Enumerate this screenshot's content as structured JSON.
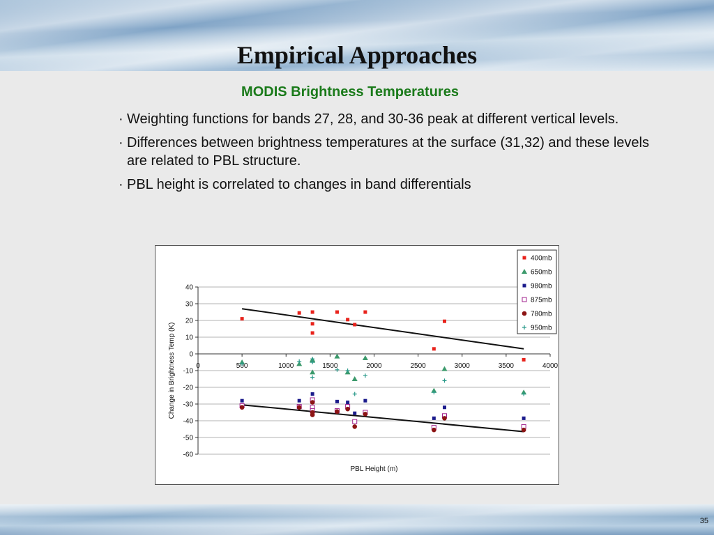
{
  "slide": {
    "title": "Empirical Approaches",
    "subtitle": "MODIS Brightness Temperatures",
    "bullets": [
      "Weighting functions for bands 27, 28, and 30-36 peak at different vertical levels.",
      "Differences between brightness temperatures at the surface (31,32) and these levels are related to PBL structure.",
      "PBL height is correlated to changes in band differentials"
    ],
    "bullet_marker": "·",
    "page_number": "35"
  },
  "colors": {
    "subtitle": "#1a7a1a",
    "series_400": "#e8231c",
    "series_650": "#3c9a6c",
    "series_980": "#1c1c8c",
    "series_875": "#a0208c",
    "series_780": "#8c1414",
    "series_950": "#2a9a8a"
  },
  "chart_data": {
    "type": "scatter",
    "xlabel": "PBL Height (m)",
    "ylabel": "Change in Brightness Temp (K)",
    "xlim": [
      0,
      4000
    ],
    "ylim": [
      -60,
      40
    ],
    "x_ticks": [
      "0",
      "500",
      "1000",
      "1500",
      "2000",
      "2500",
      "3000",
      "3500",
      "4000"
    ],
    "y_ticks": [
      "40",
      "30",
      "20",
      "10",
      "0",
      "-10",
      "-20",
      "-30",
      "-40",
      "-50",
      "-60"
    ],
    "grid": "horizontal",
    "legend_position": "top-right",
    "series": [
      {
        "name": "400mb",
        "marker": "square-filled",
        "points": [
          [
            500,
            21
          ],
          [
            1150,
            24.5
          ],
          [
            1300,
            25
          ],
          [
            1300,
            18
          ],
          [
            1300,
            12.5
          ],
          [
            1580,
            25
          ],
          [
            1700,
            20.5
          ],
          [
            1780,
            17.5
          ],
          [
            1900,
            25
          ],
          [
            2680,
            3
          ],
          [
            2800,
            19.5
          ],
          [
            3700,
            -3.5
          ]
        ]
      },
      {
        "name": "650mb",
        "marker": "triangle-filled",
        "points": [
          [
            500,
            -5
          ],
          [
            1150,
            -6
          ],
          [
            1300,
            -4
          ],
          [
            1300,
            -11
          ],
          [
            1300,
            -3.5
          ],
          [
            1580,
            -1.5
          ],
          [
            1700,
            -11
          ],
          [
            1780,
            -15
          ],
          [
            1900,
            -2.5
          ],
          [
            2680,
            -22
          ],
          [
            2800,
            -9
          ],
          [
            3700,
            -23
          ]
        ]
      },
      {
        "name": "980mb",
        "marker": "square-filled",
        "points": [
          [
            500,
            -28
          ],
          [
            1150,
            -28
          ],
          [
            1300,
            -24
          ],
          [
            1300,
            -28
          ],
          [
            1300,
            -29
          ],
          [
            1580,
            -28.5
          ],
          [
            1700,
            -29
          ],
          [
            1780,
            -35.5
          ],
          [
            1900,
            -28
          ],
          [
            2680,
            -38.5
          ],
          [
            2800,
            -32
          ],
          [
            3700,
            -38.5
          ]
        ]
      },
      {
        "name": "875mb",
        "marker": "square-open",
        "points": [
          [
            500,
            -31
          ],
          [
            1150,
            -31.5
          ],
          [
            1300,
            -27.5
          ],
          [
            1300,
            -32
          ],
          [
            1300,
            -34
          ],
          [
            1580,
            -34
          ],
          [
            1700,
            -31.5
          ],
          [
            1780,
            -40.5
          ],
          [
            1900,
            -35
          ],
          [
            2680,
            -44
          ],
          [
            2800,
            -37
          ],
          [
            3700,
            -43.5
          ]
        ]
      },
      {
        "name": "780mb",
        "marker": "circle-filled",
        "points": [
          [
            500,
            -32
          ],
          [
            1150,
            -32
          ],
          [
            1300,
            -29
          ],
          [
            1300,
            -35
          ],
          [
            1300,
            -36.5
          ],
          [
            1580,
            -34.5
          ],
          [
            1700,
            -33
          ],
          [
            1780,
            -43.5
          ],
          [
            1900,
            -36
          ],
          [
            2680,
            -45.5
          ],
          [
            2800,
            -38.5
          ],
          [
            3700,
            -45.5
          ]
        ]
      },
      {
        "name": "950mb",
        "marker": "plus",
        "points": [
          [
            500,
            -6
          ],
          [
            1150,
            -4.5
          ],
          [
            1300,
            -5
          ],
          [
            1300,
            -14
          ],
          [
            1300,
            -3
          ],
          [
            1580,
            -9.5
          ],
          [
            1700,
            -10
          ],
          [
            1780,
            -24
          ],
          [
            1900,
            -13
          ],
          [
            2680,
            -23
          ],
          [
            2800,
            -16
          ],
          [
            3700,
            -24
          ]
        ]
      }
    ],
    "trend_lines": [
      {
        "points": [
          [
            500,
            27
          ],
          [
            3700,
            3
          ]
        ]
      },
      {
        "points": [
          [
            500,
            -30.5
          ],
          [
            3700,
            -46.5
          ]
        ]
      }
    ]
  }
}
